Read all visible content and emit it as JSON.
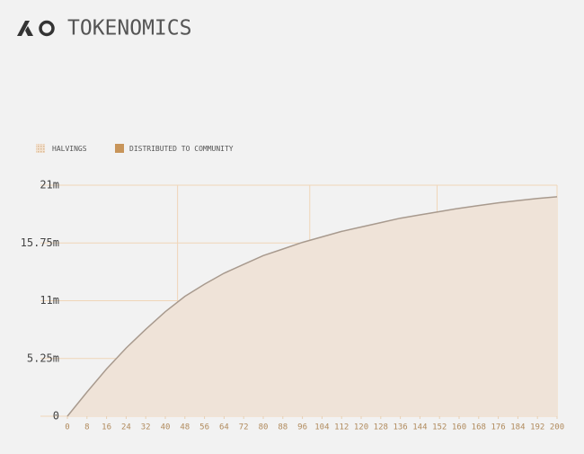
{
  "chart_data": {
    "type": "area",
    "title": "TOKENOMICS",
    "x": [
      0,
      8,
      16,
      24,
      32,
      40,
      48,
      56,
      64,
      72,
      80,
      88,
      96,
      104,
      112,
      120,
      128,
      136,
      144,
      152,
      160,
      168,
      176,
      184,
      192,
      200
    ],
    "series": [
      {
        "name": "DISTRIBUTED TO COMMUNITY",
        "color": "#c8955a",
        "values": [
          0,
          2200000,
          4300000,
          6200000,
          7900000,
          9500000,
          10900000,
          12000000,
          13000000,
          13800000,
          14600000,
          15200000,
          15800000,
          16300000,
          16800000,
          17200000,
          17600000,
          18000000,
          18300000,
          18600000,
          18900000,
          19150000,
          19400000,
          19600000,
          19800000,
          19950000
        ]
      }
    ],
    "halvings": {
      "name": "HALVINGS",
      "x": [
        45,
        99,
        151
      ]
    },
    "xlim": [
      0,
      200
    ],
    "xticks": [
      0,
      8,
      16,
      24,
      32,
      40,
      48,
      56,
      64,
      72,
      80,
      88,
      96,
      104,
      112,
      120,
      128,
      136,
      144,
      152,
      160,
      168,
      176,
      184,
      192,
      200
    ],
    "ylim": [
      0,
      21000000
    ],
    "yticks": [
      0,
      {
        "value": 5250000,
        "label": "5.25m"
      },
      {
        "value": 10500000,
        "label": "11m"
      },
      {
        "value": 15750000,
        "label": "15.75m"
      },
      {
        "value": 21000000,
        "label": "21m"
      }
    ],
    "grid": true
  }
}
